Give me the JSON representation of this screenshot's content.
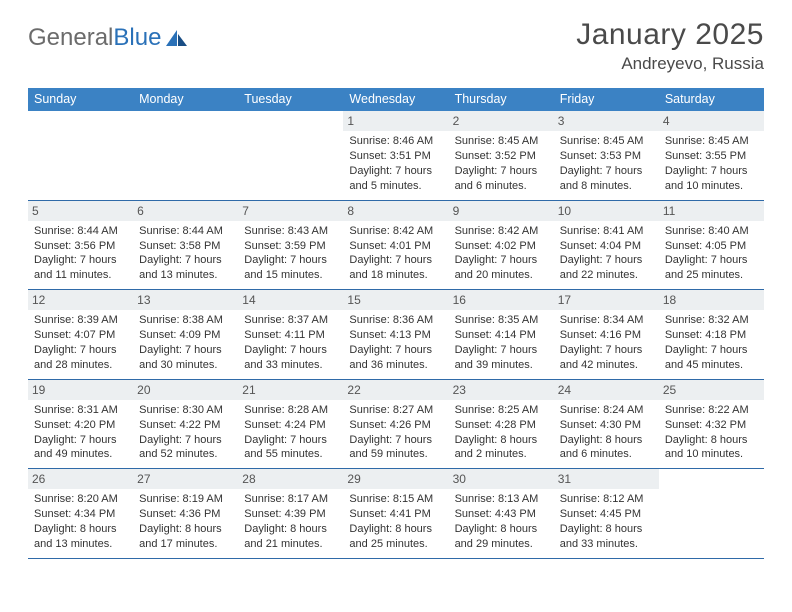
{
  "brand": {
    "general": "General",
    "blue": "Blue"
  },
  "title": {
    "month": "January 2025",
    "location": "Andreyevo, Russia"
  },
  "colors": {
    "header_bg": "#3b82c4",
    "header_text": "#ffffff",
    "daybar_bg": "#eceff1",
    "border": "#2f6aa8",
    "text": "#333333",
    "brand_gray": "#6b6b6b",
    "brand_blue": "#2a71b8"
  },
  "daynames": [
    "Sunday",
    "Monday",
    "Tuesday",
    "Wednesday",
    "Thursday",
    "Friday",
    "Saturday"
  ],
  "layout": {
    "cols": 7,
    "rows": 5,
    "leading_blanks": 3
  },
  "days": [
    {
      "n": "1",
      "sr": "8:46 AM",
      "ss": "3:51 PM",
      "dl": "7 hours and 5 minutes."
    },
    {
      "n": "2",
      "sr": "8:45 AM",
      "ss": "3:52 PM",
      "dl": "7 hours and 6 minutes."
    },
    {
      "n": "3",
      "sr": "8:45 AM",
      "ss": "3:53 PM",
      "dl": "7 hours and 8 minutes."
    },
    {
      "n": "4",
      "sr": "8:45 AM",
      "ss": "3:55 PM",
      "dl": "7 hours and 10 minutes."
    },
    {
      "n": "5",
      "sr": "8:44 AM",
      "ss": "3:56 PM",
      "dl": "7 hours and 11 minutes."
    },
    {
      "n": "6",
      "sr": "8:44 AM",
      "ss": "3:58 PM",
      "dl": "7 hours and 13 minutes."
    },
    {
      "n": "7",
      "sr": "8:43 AM",
      "ss": "3:59 PM",
      "dl": "7 hours and 15 minutes."
    },
    {
      "n": "8",
      "sr": "8:42 AM",
      "ss": "4:01 PM",
      "dl": "7 hours and 18 minutes."
    },
    {
      "n": "9",
      "sr": "8:42 AM",
      "ss": "4:02 PM",
      "dl": "7 hours and 20 minutes."
    },
    {
      "n": "10",
      "sr": "8:41 AM",
      "ss": "4:04 PM",
      "dl": "7 hours and 22 minutes."
    },
    {
      "n": "11",
      "sr": "8:40 AM",
      "ss": "4:05 PM",
      "dl": "7 hours and 25 minutes."
    },
    {
      "n": "12",
      "sr": "8:39 AM",
      "ss": "4:07 PM",
      "dl": "7 hours and 28 minutes."
    },
    {
      "n": "13",
      "sr": "8:38 AM",
      "ss": "4:09 PM",
      "dl": "7 hours and 30 minutes."
    },
    {
      "n": "14",
      "sr": "8:37 AM",
      "ss": "4:11 PM",
      "dl": "7 hours and 33 minutes."
    },
    {
      "n": "15",
      "sr": "8:36 AM",
      "ss": "4:13 PM",
      "dl": "7 hours and 36 minutes."
    },
    {
      "n": "16",
      "sr": "8:35 AM",
      "ss": "4:14 PM",
      "dl": "7 hours and 39 minutes."
    },
    {
      "n": "17",
      "sr": "8:34 AM",
      "ss": "4:16 PM",
      "dl": "7 hours and 42 minutes."
    },
    {
      "n": "18",
      "sr": "8:32 AM",
      "ss": "4:18 PM",
      "dl": "7 hours and 45 minutes."
    },
    {
      "n": "19",
      "sr": "8:31 AM",
      "ss": "4:20 PM",
      "dl": "7 hours and 49 minutes."
    },
    {
      "n": "20",
      "sr": "8:30 AM",
      "ss": "4:22 PM",
      "dl": "7 hours and 52 minutes."
    },
    {
      "n": "21",
      "sr": "8:28 AM",
      "ss": "4:24 PM",
      "dl": "7 hours and 55 minutes."
    },
    {
      "n": "22",
      "sr": "8:27 AM",
      "ss": "4:26 PM",
      "dl": "7 hours and 59 minutes."
    },
    {
      "n": "23",
      "sr": "8:25 AM",
      "ss": "4:28 PM",
      "dl": "8 hours and 2 minutes."
    },
    {
      "n": "24",
      "sr": "8:24 AM",
      "ss": "4:30 PM",
      "dl": "8 hours and 6 minutes."
    },
    {
      "n": "25",
      "sr": "8:22 AM",
      "ss": "4:32 PM",
      "dl": "8 hours and 10 minutes."
    },
    {
      "n": "26",
      "sr": "8:20 AM",
      "ss": "4:34 PM",
      "dl": "8 hours and 13 minutes."
    },
    {
      "n": "27",
      "sr": "8:19 AM",
      "ss": "4:36 PM",
      "dl": "8 hours and 17 minutes."
    },
    {
      "n": "28",
      "sr": "8:17 AM",
      "ss": "4:39 PM",
      "dl": "8 hours and 21 minutes."
    },
    {
      "n": "29",
      "sr": "8:15 AM",
      "ss": "4:41 PM",
      "dl": "8 hours and 25 minutes."
    },
    {
      "n": "30",
      "sr": "8:13 AM",
      "ss": "4:43 PM",
      "dl": "8 hours and 29 minutes."
    },
    {
      "n": "31",
      "sr": "8:12 AM",
      "ss": "4:45 PM",
      "dl": "8 hours and 33 minutes."
    }
  ],
  "labels": {
    "sunrise": "Sunrise: ",
    "sunset": "Sunset: ",
    "daylight": "Daylight: "
  }
}
